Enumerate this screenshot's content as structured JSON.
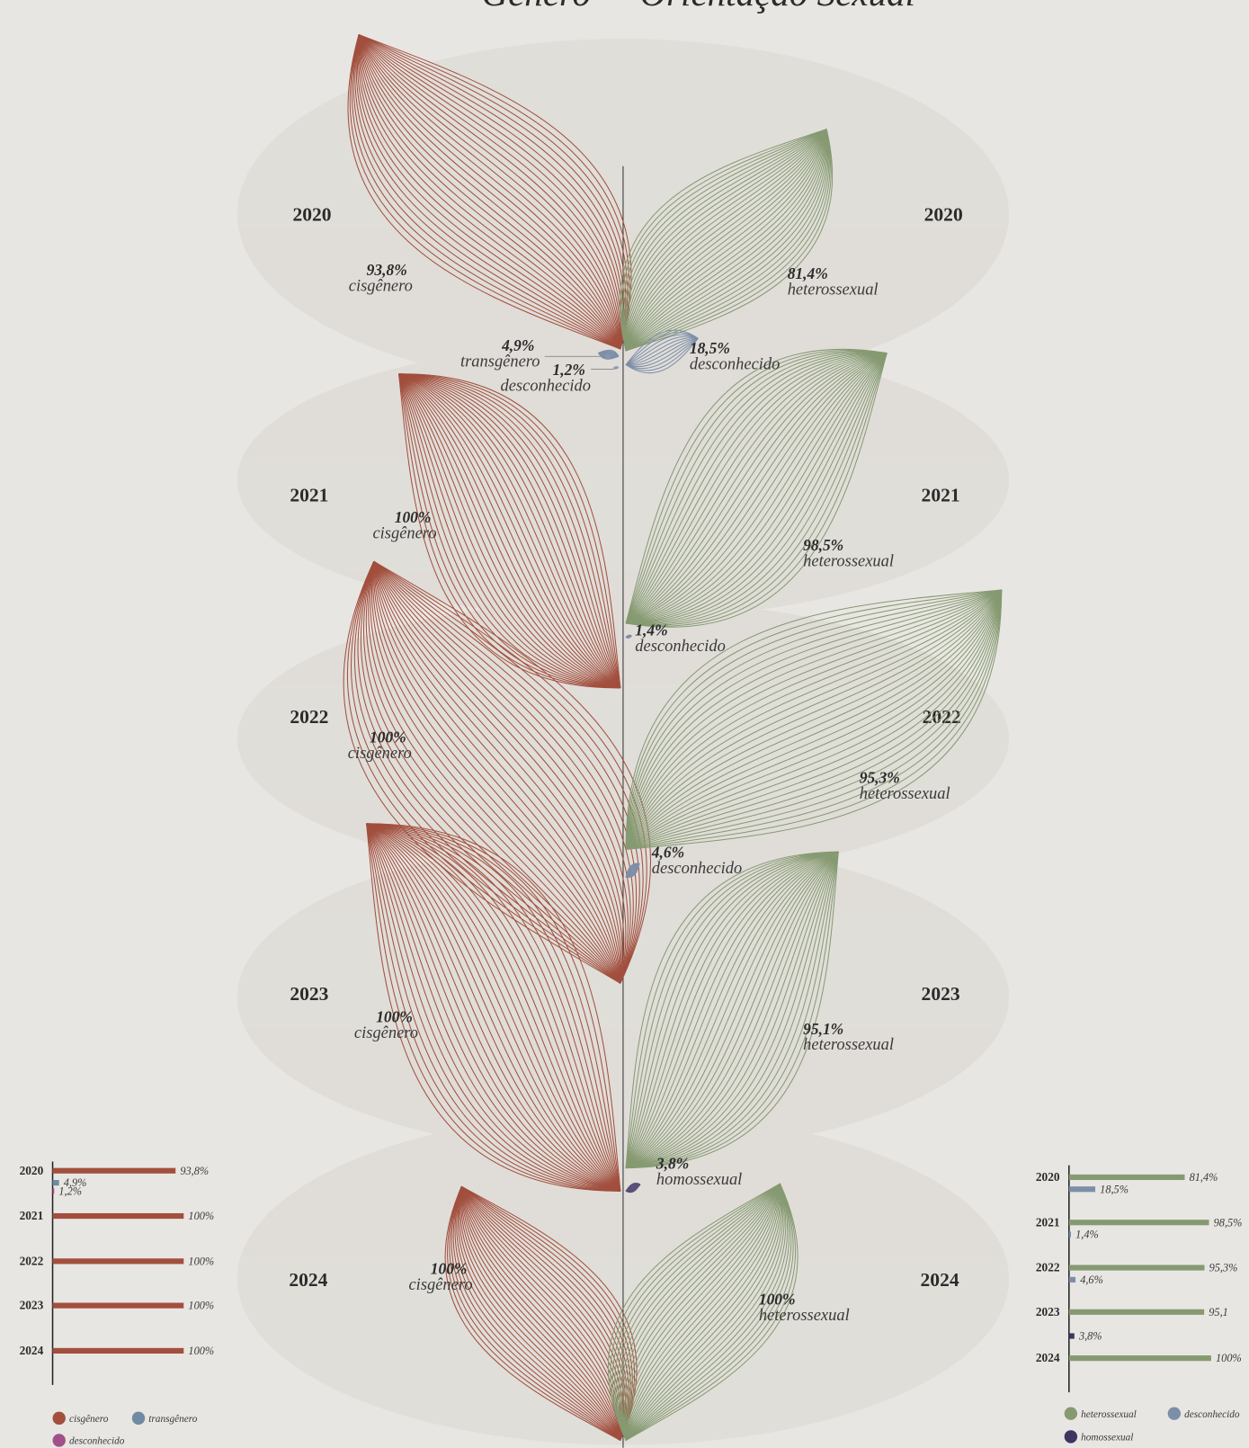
{
  "chart_data": [
    {
      "type": "leaf",
      "title": "Gênero",
      "categories": [
        "2020",
        "2021",
        "2022",
        "2023",
        "2024"
      ],
      "series": [
        {
          "name": "cisgênero",
          "color": "#a24f3e",
          "values": [
            93.8,
            100,
            100,
            100,
            100
          ],
          "value_labels": [
            "93,8%",
            "100%",
            "100%",
            "100%",
            "100%"
          ]
        },
        {
          "name": "transgênero",
          "color": "#7d8ea8",
          "values": [
            4.9,
            null,
            null,
            null,
            null
          ],
          "value_labels": [
            "4,9%",
            null,
            null,
            null,
            null
          ]
        },
        {
          "name": "desconhecido",
          "color": "#8fa0b8",
          "values": [
            1.2,
            null,
            null,
            null,
            null
          ],
          "value_labels": [
            "1,2%",
            null,
            null,
            null,
            null
          ]
        }
      ]
    },
    {
      "type": "leaf",
      "title": "Orientação Sexual",
      "categories": [
        "2020",
        "2021",
        "2022",
        "2023",
        "2024"
      ],
      "series": [
        {
          "name": "heterossexual",
          "color": "#869a72",
          "values": [
            81.4,
            98.5,
            95.3,
            95.1,
            100
          ],
          "value_labels": [
            "81,4%",
            "98,5%",
            "95,3%",
            "95,1%",
            "100%"
          ]
        },
        {
          "name": "desconhecido",
          "color": "#7d8ea8",
          "values": [
            18.5,
            1.4,
            4.6,
            null,
            null
          ],
          "value_labels": [
            "18,5%",
            "1,4%",
            "4,6%",
            null,
            null
          ]
        },
        {
          "name": "homossexual",
          "color": "#5a4e7a",
          "values": [
            null,
            null,
            null,
            3.8,
            null
          ],
          "value_labels": [
            null,
            null,
            null,
            "3,8%",
            null
          ]
        }
      ]
    },
    {
      "type": "bar",
      "categories": [
        "2020",
        "2021",
        "2022",
        "2023",
        "2024"
      ],
      "series": [
        {
          "name": "cisgênero",
          "color": "#a24f3e",
          "values": [
            93.8,
            100,
            100,
            100,
            100
          ],
          "value_labels": [
            "93,8%",
            "100%",
            "100%",
            "100%",
            "100%"
          ]
        },
        {
          "name": "transgênero",
          "color": "#6f8aa3",
          "values": [
            4.9,
            null,
            null,
            null,
            null
          ],
          "value_labels": [
            "4,9%",
            null,
            null,
            null,
            null
          ]
        },
        {
          "name": "desconhecido",
          "color": "#a0508a",
          "values": [
            1.2,
            null,
            null,
            null,
            null
          ],
          "value_labels": [
            "1,2%",
            null,
            null,
            null,
            null
          ]
        }
      ]
    },
    {
      "type": "bar",
      "categories": [
        "2020",
        "2021",
        "2022",
        "2023",
        "2024"
      ],
      "series": [
        {
          "name": "heterossexual",
          "color": "#869a72",
          "values": [
            81.4,
            98.5,
            95.3,
            95.1,
            100
          ],
          "value_labels": [
            "81,4%",
            "98,5%",
            "95,3%",
            "95,1",
            "100%"
          ]
        },
        {
          "name": "desconhecido",
          "color": "#7d8ea8",
          "values": [
            18.5,
            1.4,
            4.6,
            null,
            null
          ],
          "value_labels": [
            "18,5%",
            "1,4%",
            "4,6%",
            null,
            null
          ]
        },
        {
          "name": "homossexual",
          "color": "#3e3560",
          "values": [
            null,
            null,
            null,
            3.8,
            null
          ],
          "value_labels": [
            null,
            null,
            null,
            "3,8%",
            null
          ]
        }
      ]
    }
  ]
}
